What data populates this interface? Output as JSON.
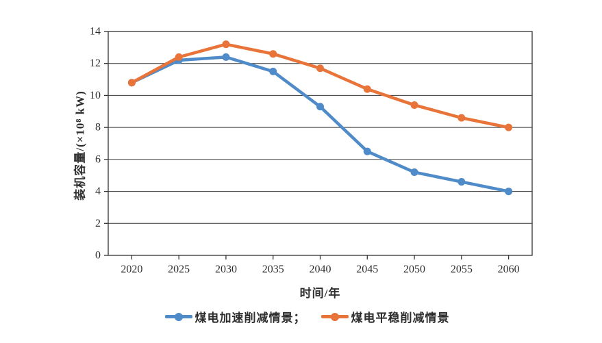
{
  "figure": {
    "background": "#ffffff",
    "axis_color": "#333333",
    "text_color": "#2e2e2e"
  },
  "chart_data": {
    "type": "line",
    "title": "",
    "xlabel": "时间/年",
    "ylabel": "装机容量/(×10⁸ kW)",
    "categories": [
      "2020",
      "2025",
      "2030",
      "2035",
      "2040",
      "2045",
      "2050",
      "2055",
      "2060"
    ],
    "series": [
      {
        "name": "煤电加速削减情景",
        "legend_label": "煤电加速削减情景；",
        "color": "#4E8BC8",
        "marker": "circle",
        "values": [
          10.8,
          12.2,
          12.4,
          11.5,
          9.3,
          6.5,
          5.2,
          4.6,
          4.0
        ]
      },
      {
        "name": "煤电平稳削减情景",
        "legend_label": "煤电平稳削减情景",
        "color": "#E8743A",
        "marker": "circle",
        "values": [
          10.8,
          12.4,
          13.2,
          12.6,
          11.7,
          10.4,
          9.4,
          8.6,
          8.0
        ]
      }
    ],
    "ylim": [
      0,
      14
    ],
    "yticks": [
      0,
      2,
      4,
      6,
      8,
      10,
      12,
      14
    ],
    "grid": "horizontal",
    "legend_position": "bottom"
  }
}
